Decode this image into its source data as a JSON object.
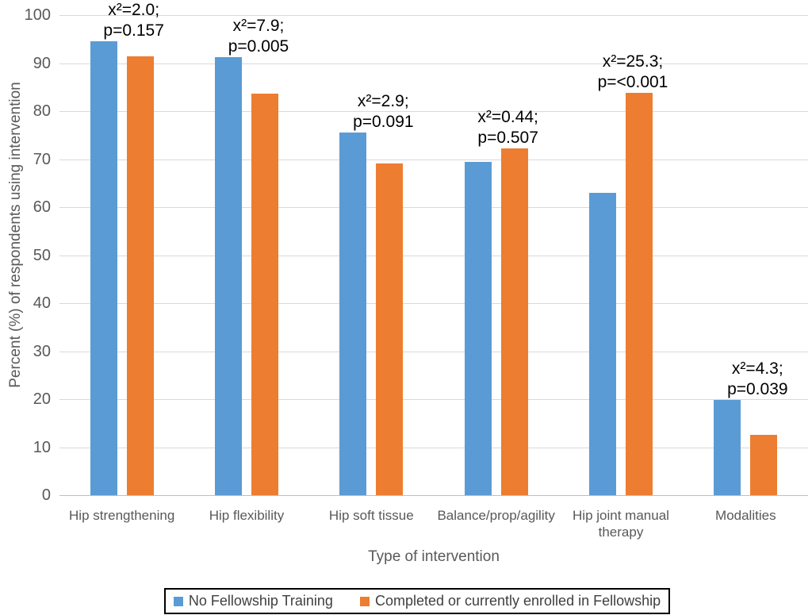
{
  "chart_data": {
    "type": "bar",
    "title": "",
    "xlabel": "Type of intervention",
    "ylabel": "Percent (%) of respondents using intervention",
    "ylim": [
      0,
      100
    ],
    "yticks": [
      0,
      10,
      20,
      30,
      40,
      50,
      60,
      70,
      80,
      90,
      100
    ],
    "grid": true,
    "legend_position": "bottom",
    "categories": [
      "Hip strengthening",
      "Hip flexibility",
      "Hip soft tissue",
      "Balance/prop/agility",
      "Hip joint manual therapy",
      "Modalities"
    ],
    "series": [
      {
        "name": "No Fellowship Training",
        "color": "#5B9BD5",
        "values": [
          94.5,
          91.2,
          75.6,
          69.5,
          63.0,
          19.8
        ]
      },
      {
        "name": "Completed or currently enrolled in Fellowship",
        "color": "#ED7D31",
        "values": [
          91.4,
          83.7,
          69.1,
          72.2,
          83.8,
          12.6
        ]
      }
    ],
    "annotations": [
      {
        "chi_square": "x²=2.0;",
        "p_value": "p=0.157"
      },
      {
        "chi_square": "x²=7.9;",
        "p_value": "p=0.005"
      },
      {
        "chi_square": "x²=2.9;",
        "p_value": "p=0.091"
      },
      {
        "chi_square": "x²=0.44;",
        "p_value": "p=0.507"
      },
      {
        "chi_square": "x²=25.3;",
        "p_value": "p=<0.001"
      },
      {
        "chi_square": "x²=4.3;",
        "p_value": "p=0.039"
      }
    ]
  },
  "colors": {
    "background": "#FFFFFF",
    "grid": "#D9D9D9",
    "baseline": "#BFBFBF",
    "axis_text": "#595959",
    "annotation_text": "#000000",
    "legend_border": "#000000"
  }
}
